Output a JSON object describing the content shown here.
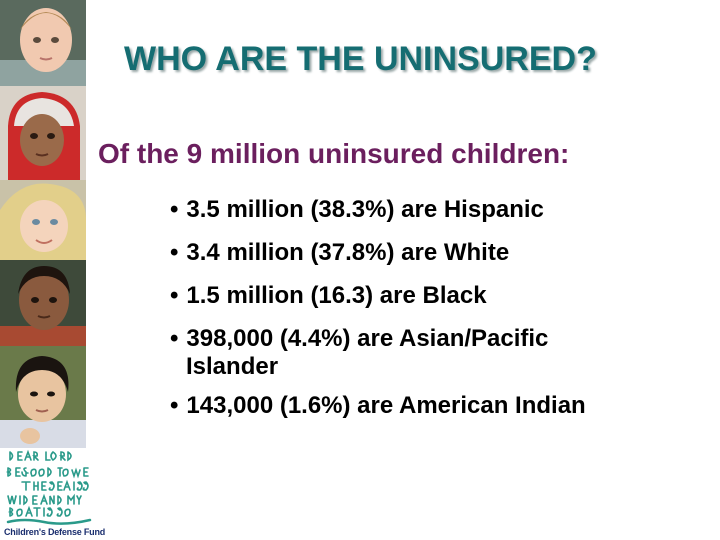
{
  "slide": {
    "title": "WHO ARE THE UNINSURED?",
    "subtitle": "Of the 9 million uninsured children:",
    "bullet_glyph": "•",
    "bullets": [
      {
        "text": "3.5 million (38.3%) are Hispanic"
      },
      {
        "text": "3.4 million (37.8%) are White"
      },
      {
        "text": "1.5 million (16.3) are Black"
      },
      {
        "text": "398,000 (4.4%) are Asian/Pacific",
        "continuation": "Islander"
      },
      {
        "text": "143,000 (1.6%) are American Indian"
      }
    ]
  },
  "logo": {
    "name": "Children's Defense Fund",
    "artwork_text": "DEAR LORD BE GOOD TO ME THE SEA IS SO WIDE AND MY BOAT IS SO SMALL"
  },
  "photos": [
    "child-photo-1",
    "child-photo-2",
    "child-photo-3",
    "child-photo-4",
    "child-photo-5"
  ]
}
